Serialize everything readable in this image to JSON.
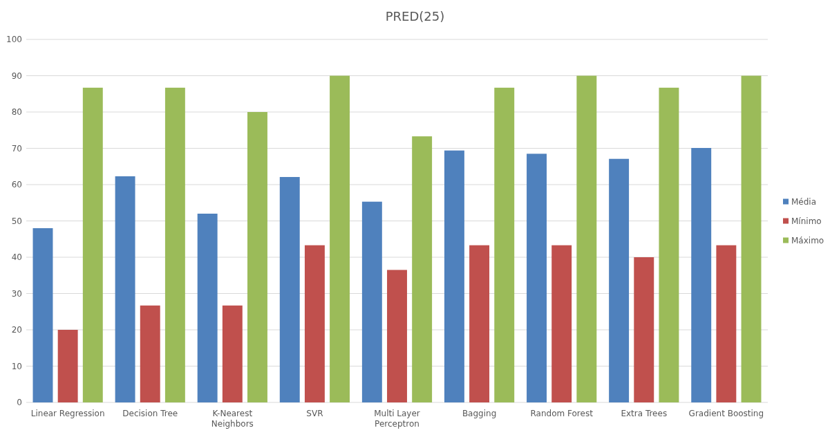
{
  "chart_data": {
    "type": "bar",
    "title": "PRED(25)",
    "categories": [
      "Linear Regression",
      "Decision Tree",
      "K-Nearest Neighbors",
      "SVR",
      "Multi Layer Perceptron",
      "Bagging",
      "Random Forest",
      "Extra Trees",
      "Gradient Boosting"
    ],
    "series": [
      {
        "name": "Média",
        "color": "#4f81bd",
        "values": [
          48,
          62.3,
          52,
          62.1,
          55.3,
          69.4,
          68.5,
          67.1,
          70.1
        ]
      },
      {
        "name": "Mínimo",
        "color": "#c0504d",
        "values": [
          20,
          26.7,
          26.7,
          43.3,
          36.5,
          43.3,
          43.3,
          40,
          43.3
        ]
      },
      {
        "name": "Máximo",
        "color": "#9bbb59",
        "values": [
          86.7,
          86.7,
          80,
          90,
          73.3,
          86.7,
          90,
          86.7,
          90
        ]
      }
    ],
    "ylim": [
      0,
      100
    ],
    "yticks": [
      0,
      10,
      20,
      30,
      40,
      50,
      60,
      70,
      80,
      90,
      100
    ],
    "grid": "y",
    "legend": "right"
  }
}
